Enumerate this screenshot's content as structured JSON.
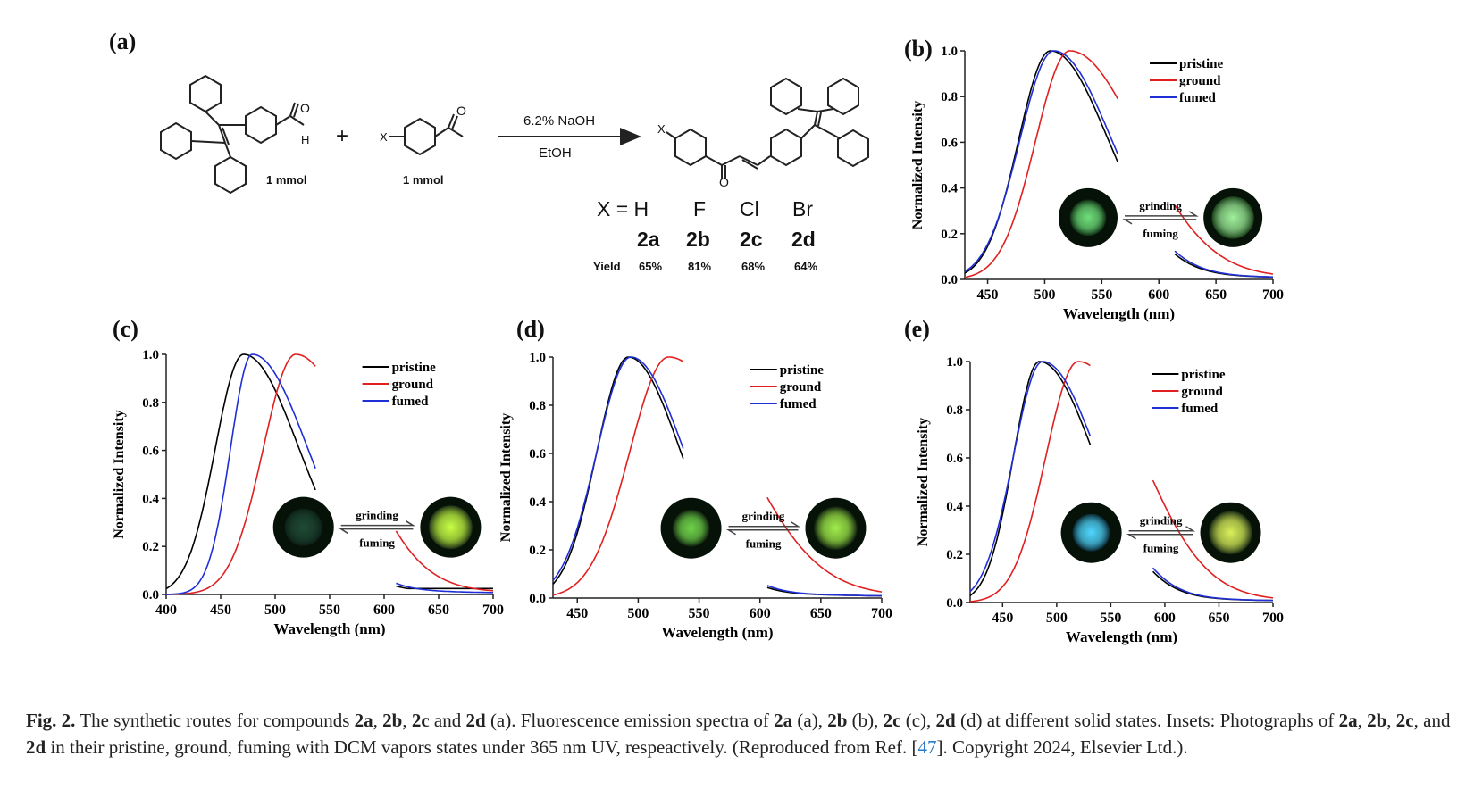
{
  "figure": {
    "panel_labels": [
      "(a)",
      "(b)",
      "(c)",
      "(d)",
      "(e)"
    ],
    "scheme": {
      "reagent_amount_1": "1 mmol",
      "reagent_amount_2": "1 mmol",
      "plus": "+",
      "arrow_top": "6.2% NaOH",
      "arrow_bottom": "EtOH",
      "substituent_label": "X",
      "aldehyde_H": "H",
      "atom_O": "O",
      "x_label": "X = H",
      "x_values": [
        "F",
        "Cl",
        "Br"
      ],
      "compounds": [
        "2a",
        "2b",
        "2c",
        "2d"
      ],
      "yield_label": "Yield",
      "yields": [
        "65%",
        "81%",
        "68%",
        "64%"
      ]
    },
    "inset_labels": {
      "forward": "grinding",
      "backward": "fuming"
    },
    "colors": {
      "pristine": "#000000",
      "ground": "#e02020",
      "fumed": "#1f2fd6"
    }
  },
  "chart_data": [
    {
      "type": "line",
      "panel": "(b)",
      "xlabel": "Wavelength (nm)",
      "ylabel": "Normalized Intensity",
      "xlim": [
        430,
        700
      ],
      "ylim": [
        0,
        1.0
      ],
      "xticks": [
        450,
        500,
        550,
        600,
        650,
        700
      ],
      "xtick_labels": [
        "450",
        "500",
        "550",
        "600",
        "650",
        "700"
      ],
      "yticks": [
        0,
        0.2,
        0.4,
        0.6,
        0.8,
        1.0
      ],
      "ytick_labels": [
        "0.0",
        "0.2",
        "0.4",
        "0.6",
        "0.8",
        "1.0"
      ],
      "legend": "top-right",
      "series": [
        {
          "name": "pristine",
          "color": "#000000",
          "peak": 505,
          "wl": 28,
          "wr": 50,
          "baseline": 0
        },
        {
          "name": "ground",
          "color": "#e02020",
          "peak": 522,
          "wl": 30,
          "wr": 60,
          "baseline": 0
        },
        {
          "name": "fumed",
          "color": "#1f2fd6",
          "peak": 508,
          "wl": 30,
          "wr": 50,
          "baseline": 0
        }
      ]
    },
    {
      "type": "line",
      "panel": "(c)",
      "xlabel": "Wavelength (nm)",
      "ylabel": "Normalized Intensity",
      "xlim": [
        400,
        700
      ],
      "ylim": [
        0,
        1.0
      ],
      "xticks": [
        400,
        450,
        500,
        550,
        600,
        650,
        700
      ],
      "xtick_labels": [
        "400",
        "450",
        "500",
        "550",
        "600",
        "650",
        "700"
      ],
      "yticks": [
        0,
        0.2,
        0.4,
        0.6,
        0.8,
        1.0
      ],
      "ytick_labels": [
        "0.0",
        "0.2",
        "0.4",
        "0.6",
        "0.8",
        "1.0"
      ],
      "legend": "top-right",
      "series": [
        {
          "name": "pristine",
          "color": "#000000",
          "peak": 471,
          "wl": 26,
          "wr": 50,
          "baseline": 0.025
        },
        {
          "name": "ground",
          "color": "#e02020",
          "peak": 519,
          "wl": 30,
          "wr": 55,
          "baseline": 0
        },
        {
          "name": "fumed",
          "color": "#1f2fd6",
          "peak": 479,
          "wl": 20,
          "wr": 50,
          "baseline": 0
        }
      ]
    },
    {
      "type": "line",
      "panel": "(d)",
      "xlabel": "Wavelength (nm)",
      "ylabel": "Normalized Intensity",
      "xlim": [
        430,
        700
      ],
      "ylim": [
        0,
        1.0
      ],
      "xticks": [
        450,
        500,
        550,
        600,
        650,
        700
      ],
      "xtick_labels": [
        "450",
        "500",
        "550",
        "600",
        "650",
        "700"
      ],
      "yticks": [
        0,
        0.2,
        0.4,
        0.6,
        0.8,
        1.0
      ],
      "ytick_labels": [
        "0.0",
        "0.2",
        "0.4",
        "0.6",
        "0.8",
        "1.0"
      ],
      "legend": "top-right",
      "series": [
        {
          "name": "pristine",
          "color": "#000000",
          "peak": 492,
          "wl": 26,
          "wr": 42,
          "baseline": 0
        },
        {
          "name": "ground",
          "color": "#e02020",
          "peak": 525,
          "wl": 32,
          "wr": 60,
          "baseline": 0
        },
        {
          "name": "fumed",
          "color": "#1f2fd6",
          "peak": 494,
          "wl": 28,
          "wr": 43,
          "baseline": 0
        }
      ]
    },
    {
      "type": "line",
      "panel": "(e)",
      "xlabel": "Wavelength (nm)",
      "ylabel": "Normalized Intensity",
      "xlim": [
        420,
        700
      ],
      "ylim": [
        0,
        1.0
      ],
      "xticks": [
        450,
        500,
        550,
        600,
        650,
        700
      ],
      "xtick_labels": [
        "450",
        "500",
        "550",
        "600",
        "650",
        "700"
      ],
      "yticks": [
        0,
        0.2,
        0.4,
        0.6,
        0.8,
        1.0
      ],
      "ytick_labels": [
        "0.0",
        "0.2",
        "0.4",
        "0.6",
        "0.8",
        "1.0"
      ],
      "legend": "top-right",
      "series": [
        {
          "name": "pristine",
          "color": "#000000",
          "peak": 484,
          "wl": 24,
          "wr": 50,
          "baseline": 0
        },
        {
          "name": "ground",
          "color": "#e02020",
          "peak": 520,
          "wl": 30,
          "wr": 58,
          "baseline": 0
        },
        {
          "name": "fumed",
          "color": "#1f2fd6",
          "peak": 487,
          "wl": 27,
          "wr": 50,
          "baseline": 0
        }
      ]
    }
  ],
  "caption": {
    "fig_label": "Fig. 2.",
    "t1": " The synthetic routes for compounds ",
    "c2a": "2a",
    "sep1": ", ",
    "c2b": "2b",
    "sep2": ", ",
    "c2c": "2c",
    "and1": " and ",
    "c2d": "2d",
    "t2": " (a). Fluorescence emission spectra of ",
    "c2a_2": "2a",
    "t3": " (a), ",
    "c2b_2": "2b",
    "t4": " (b), ",
    "c2c_2": "2c",
    "t5": " (c), ",
    "c2d_2": "2d",
    "t6": " (d) at different solid states. Insets: Photographs of ",
    "c2a_3": "2a",
    "sep3": ", ",
    "c2b_3": "2b",
    "sep4": ", ",
    "c2c_3": "2c",
    "and2": ", and ",
    "c2d_3": "2d",
    "t7": " in their pristine, ground, fuming with DCM vapors states under 365 nm UV, respeactively. (Reproduced from Ref. [",
    "ref": "47",
    "t8": "]. Copyright 2024, Elsevier Ltd.)."
  }
}
